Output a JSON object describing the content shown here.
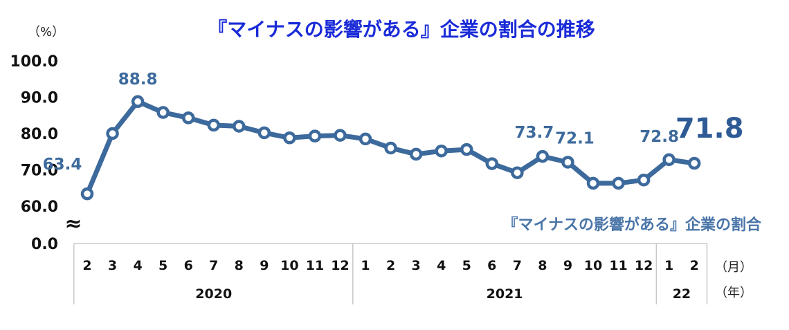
{
  "chart_data": {
    "type": "line",
    "title": "『マイナスの影響がある』企業の割合の推移",
    "y_unit": "（%）",
    "x_unit_month": "（月）",
    "x_unit_year": "（年）",
    "yticks": [
      "100.0",
      "90.0",
      "80.0",
      "70.0",
      "60.0",
      "0.0"
    ],
    "y_break_symbol": "≈",
    "ylim": [
      0,
      100
    ],
    "x": [
      "2",
      "3",
      "4",
      "5",
      "6",
      "7",
      "8",
      "9",
      "10",
      "11",
      "12",
      "1",
      "2",
      "3",
      "4",
      "5",
      "6",
      "7",
      "8",
      "9",
      "10",
      "11",
      "12",
      "1",
      "2"
    ],
    "year_groups": [
      {
        "label": "2020",
        "count": 11
      },
      {
        "label": "2021",
        "count": 12
      },
      {
        "label": "22",
        "count": 2
      }
    ],
    "series": [
      {
        "name": "『マイナスの影響がある』企業の割合",
        "values": [
          63.4,
          80.0,
          88.8,
          85.8,
          84.3,
          82.3,
          82.0,
          80.2,
          78.8,
          79.3,
          79.5,
          78.5,
          76.0,
          74.3,
          75.2,
          75.6,
          71.7,
          69.2,
          73.7,
          72.1,
          66.3,
          66.3,
          67.2,
          72.8,
          71.8
        ]
      }
    ],
    "data_labels": [
      {
        "index": 0,
        "text": "63.4"
      },
      {
        "index": 2,
        "text": "88.8"
      },
      {
        "index": 18,
        "text": "73.7"
      },
      {
        "index": 19,
        "text": "72.1"
      },
      {
        "index": 23,
        "text": "72.8"
      },
      {
        "index": 24,
        "text": "71.8",
        "emphasis": true
      }
    ],
    "colors": {
      "title": "#1a2bd8",
      "line": "#3d6a9c",
      "marker_fill": "#ffffff",
      "series_label": "#4a75a8",
      "axis": "#c8c8c8"
    }
  }
}
